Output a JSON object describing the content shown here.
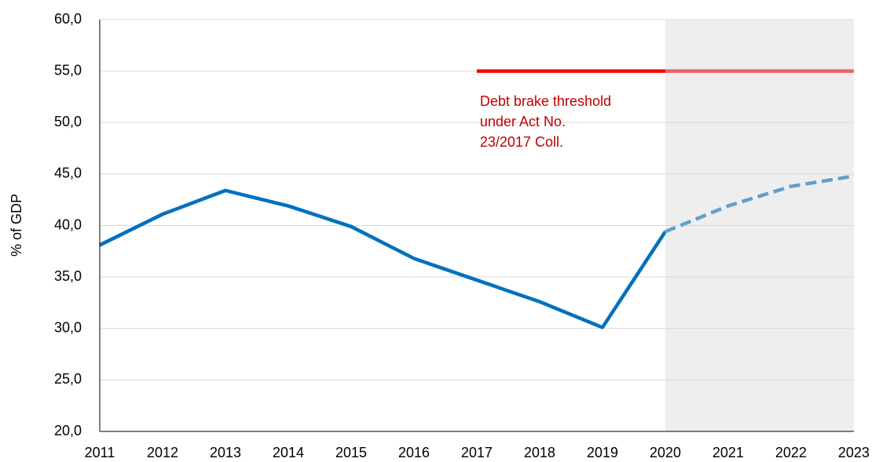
{
  "chart_data": {
    "type": "line",
    "y_label": "% of GDP",
    "categories": [
      "2011",
      "2012",
      "2013",
      "2014",
      "2015",
      "2016",
      "2017",
      "2018",
      "2019",
      "2020",
      "2021",
      "2022",
      "2023"
    ],
    "series": [
      {
        "color": "#0070c0",
        "dashed": false,
        "values": [
          38.1,
          41.1,
          43.4,
          41.9,
          39.9,
          36.8,
          34.7,
          32.6,
          30.1,
          39.4,
          null,
          null,
          null
        ]
      },
      {
        "color": "#0070c0",
        "dashed": true,
        "values": [
          null,
          null,
          null,
          null,
          null,
          null,
          null,
          null,
          null,
          39.4,
          41.9,
          43.8,
          44.8
        ]
      },
      {
        "color": "#ff0000",
        "dashed": false,
        "values": [
          null,
          null,
          null,
          null,
          null,
          null,
          55,
          55,
          55,
          55,
          55,
          55,
          55
        ]
      }
    ],
    "annotation": [
      "Debt brake threshold",
      "under Act No.",
      "23/2017 Coll."
    ],
    "annotation_color": "#c00000",
    "shaded_range": [
      "2020",
      "2023"
    ],
    "ylim": [
      20,
      60
    ],
    "yticks": [
      {
        "value": 20,
        "label": "20,0"
      },
      {
        "value": 25,
        "label": "25,0"
      },
      {
        "value": 30,
        "label": "30,0"
      },
      {
        "value": 35,
        "label": "35,0"
      },
      {
        "value": 40,
        "label": "40,0"
      },
      {
        "value": 45,
        "label": "45,0"
      },
      {
        "value": 50,
        "label": "50,0"
      },
      {
        "value": 55,
        "label": "55,0"
      },
      {
        "value": 60,
        "label": "60,0"
      }
    ],
    "grid": true
  }
}
